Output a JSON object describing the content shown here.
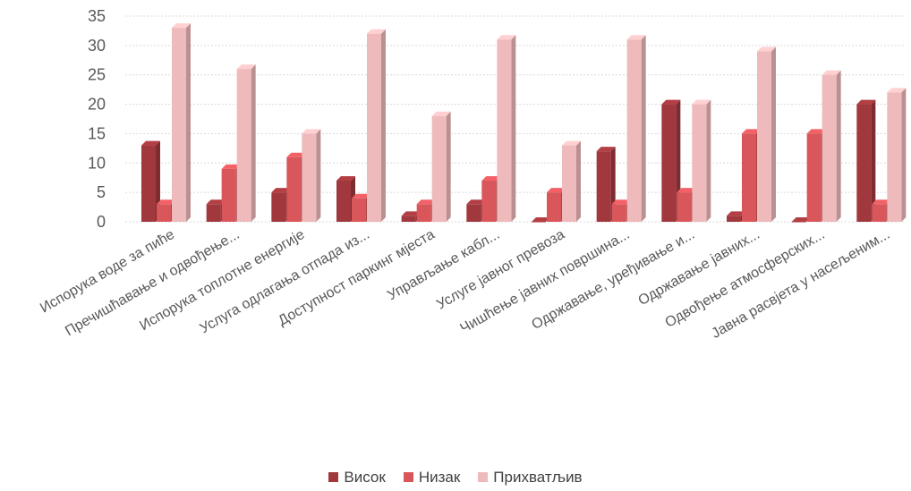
{
  "chart_data": {
    "type": "bar",
    "categories": [
      "Испорука воде за пиће",
      "Пречишћавање и одвођење...",
      "Испорука топлотне енергије",
      "Услуга одлагања отпада из...",
      "Доступност паркинг мјеста",
      "Управљање кабл...",
      "Услуге јавног превоза",
      "Чишћење јавних површина...",
      "Одржавање, уређивање и...",
      "Одржавање јавних...",
      "Одвођење атмосферских...",
      "Јавна расвјета у насељеним..."
    ],
    "series": [
      {
        "name": "Висок",
        "color": "#a0383e",
        "values": [
          13,
          3,
          5,
          7,
          1,
          3,
          0,
          12,
          20,
          1,
          0,
          20
        ]
      },
      {
        "name": "Низак",
        "color": "#d9575b",
        "values": [
          3,
          9,
          11,
          4,
          3,
          7,
          5,
          3,
          5,
          15,
          15,
          3
        ]
      },
      {
        "name": "Прихватљив",
        "color": "#eebabb",
        "values": [
          33,
          26,
          15,
          32,
          18,
          31,
          13,
          31,
          20,
          29,
          25,
          22
        ]
      }
    ],
    "yticks": [
      "0",
      "5",
      "10",
      "15",
      "20",
      "25",
      "30",
      "35"
    ],
    "ylim": [
      0,
      35
    ],
    "grid": true,
    "legend_position": "bottom"
  }
}
